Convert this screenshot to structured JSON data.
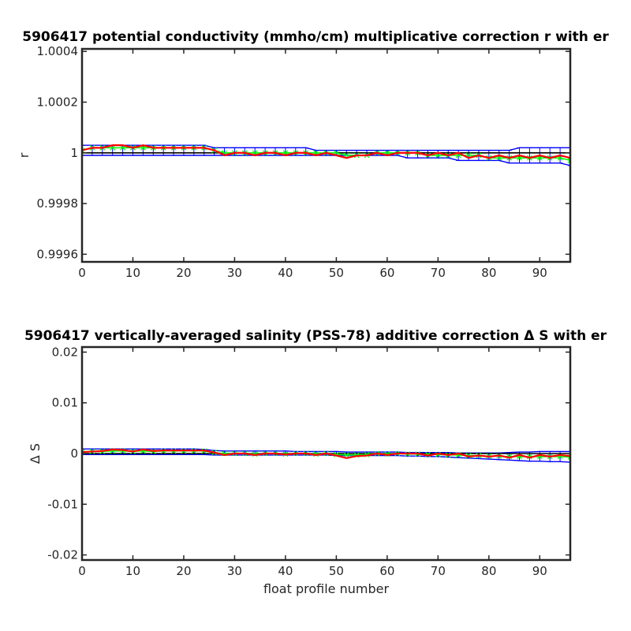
{
  "chart_data": [
    {
      "type": "line",
      "title": "5906417 potential conductivity (mmho/cm) multiplicative correction r with er",
      "xlabel": "",
      "ylabel": "r",
      "xlim": [
        0,
        96
      ],
      "ylim": [
        0.99957,
        1.00041
      ],
      "xticks": [
        0,
        10,
        20,
        30,
        40,
        50,
        60,
        70,
        80,
        90
      ],
      "yticks": [
        1.0004,
        1.0002,
        1,
        0.9998,
        0.9996
      ],
      "ytick_labels": [
        "1.0004",
        "1.0002",
        "1",
        "0.9998",
        "0.9996"
      ],
      "reference": 1,
      "x": [
        0,
        2,
        4,
        6,
        8,
        10,
        12,
        14,
        16,
        18,
        20,
        22,
        24,
        26,
        28,
        30,
        32,
        34,
        36,
        38,
        40,
        42,
        44,
        46,
        48,
        50,
        52,
        54,
        56,
        58,
        60,
        62,
        64,
        66,
        68,
        70,
        72,
        74,
        76,
        78,
        80,
        82,
        84,
        86,
        88,
        90,
        92,
        94,
        96
      ],
      "series": [
        {
          "color": "#ff0000",
          "values": [
            1.00001,
            1.00002,
            1.00002,
            1.00003,
            1.00003,
            1.00002,
            1.00003,
            1.00002,
            1.00002,
            1.00002,
            1.00002,
            1.00002,
            1.00002,
            1.00001,
            0.99999,
            1.0,
            1.0,
            0.99999,
            1.0,
            1.0,
            0.99999,
            1.0,
            1.0,
            0.99999,
            1.0,
            0.99999,
            0.99998,
            0.99999,
            0.99999,
            1.0,
            0.99999,
            1.0,
            1.0,
            1.0,
            0.99999,
            1.0,
            0.99999,
            1.0,
            0.99998,
            0.99999,
            0.99998,
            0.99999,
            0.99998,
            0.99999,
            0.99998,
            0.99999,
            0.99998,
            0.99999,
            0.99998
          ]
        },
        {
          "color": "#00ff00",
          "values": [
            1.00001,
            1.00002,
            1.00002,
            1.00002,
            1.00002,
            1.00002,
            1.00002,
            1.00002,
            1.00002,
            1.00002,
            1.00002,
            1.00002,
            1.00002,
            1.00001,
            1.0,
            1.0,
            1.0,
            1.0,
            1.0,
            1.0,
            1.0,
            1.0,
            1.0,
            1.0,
            1.0,
            1.0,
            0.99999,
            0.99999,
            0.99999,
            1.0,
            1.0,
            1.0,
            1.0,
            1.0,
            0.99999,
            0.99999,
            0.99999,
            0.99999,
            0.99999,
            0.99999,
            0.99998,
            0.99998,
            0.99998,
            0.99998,
            0.99998,
            0.99998,
            0.99998,
            0.99998,
            0.99997
          ]
        },
        {
          "color": "#0000ff",
          "band_upper": [
            1.00003,
            1.00003,
            1.00003,
            1.00003,
            1.00003,
            1.00003,
            1.00003,
            1.00003,
            1.00003,
            1.00003,
            1.00003,
            1.00003,
            1.00003,
            1.00002,
            1.00002,
            1.00002,
            1.00002,
            1.00002,
            1.00002,
            1.00002,
            1.00002,
            1.00002,
            1.00002,
            1.00001,
            1.00001,
            1.00001,
            1.00001,
            1.00001,
            1.00001,
            1.00001,
            1.00001,
            1.00001,
            1.00001,
            1.00001,
            1.00001,
            1.00001,
            1.00001,
            1.00001,
            1.00001,
            1.00001,
            1.00001,
            1.00001,
            1.00001,
            1.00002,
            1.00002,
            1.00002,
            1.00002,
            1.00002,
            1.00002
          ],
          "band_lower": [
            0.99999,
            0.99999,
            0.99999,
            0.99999,
            0.99999,
            0.99999,
            0.99999,
            0.99999,
            0.99999,
            0.99999,
            0.99999,
            0.99999,
            0.99999,
            0.99999,
            0.99999,
            0.99999,
            0.99999,
            0.99999,
            0.99999,
            0.99999,
            0.99999,
            0.99999,
            0.99999,
            0.99999,
            0.99999,
            0.99999,
            0.99999,
            0.99999,
            0.99999,
            0.99999,
            0.99999,
            0.99999,
            0.99998,
            0.99998,
            0.99998,
            0.99998,
            0.99998,
            0.99997,
            0.99997,
            0.99997,
            0.99997,
            0.99997,
            0.99996,
            0.99996,
            0.99996,
            0.99996,
            0.99996,
            0.99996,
            0.99995
          ]
        }
      ]
    },
    {
      "type": "line",
      "title": "5906417 vertically-averaged salinity (PSS-78) additive correction Δ S with er",
      "xlabel": "float profile number",
      "ylabel": "Δ S",
      "xlim": [
        0,
        96
      ],
      "ylim": [
        -0.021,
        0.021
      ],
      "xticks": [
        0,
        10,
        20,
        30,
        40,
        50,
        60,
        70,
        80,
        90
      ],
      "yticks": [
        0.02,
        0.01,
        0,
        -0.01,
        -0.02
      ],
      "ytick_labels": [
        "0.02",
        "0.01",
        "0",
        "-0.01",
        "-0.02"
      ],
      "reference": 0,
      "x": [
        0,
        2,
        4,
        6,
        8,
        10,
        12,
        14,
        16,
        18,
        20,
        22,
        24,
        26,
        28,
        30,
        32,
        34,
        36,
        38,
        40,
        42,
        44,
        46,
        48,
        50,
        52,
        54,
        56,
        58,
        60,
        62,
        64,
        66,
        68,
        70,
        72,
        74,
        76,
        78,
        80,
        82,
        84,
        86,
        88,
        90,
        92,
        94,
        96
      ],
      "series": [
        {
          "color": "#ff0000",
          "values": [
            0.0003,
            0.0004,
            0.0005,
            0.0008,
            0.0007,
            0.0004,
            0.0008,
            0.0005,
            0.0006,
            0.0006,
            0.0006,
            0.0006,
            0.0006,
            0.0002,
            -0.0003,
            0.0,
            0.0,
            -0.0003,
            0.0,
            0.0,
            -0.0002,
            0.0,
            0.0,
            -0.0003,
            0.0,
            -0.0004,
            -0.0009,
            -0.0005,
            -0.0004,
            0.0,
            -0.0003,
            0.0,
            0.0,
            0.0,
            -0.0004,
            0.0,
            -0.0003,
            0.0,
            -0.0006,
            -0.0004,
            -0.0006,
            -0.0004,
            -0.0008,
            -0.0003,
            -0.0008,
            -0.0003,
            -0.0006,
            -0.0003,
            -0.0005
          ]
        },
        {
          "color": "#00ff00",
          "values": [
            0.0003,
            0.0004,
            0.0004,
            0.0005,
            0.0005,
            0.0004,
            0.0005,
            0.0004,
            0.0005,
            0.0005,
            0.0005,
            0.0005,
            0.0005,
            0.0002,
            0.0,
            0.0,
            0.0,
            -0.0001,
            0.0,
            0.0,
            -0.0001,
            0.0,
            0.0,
            -0.0001,
            0.0,
            -0.0002,
            -0.0003,
            -0.0003,
            -0.0002,
            0.0,
            -0.0001,
            0.0,
            -0.0001,
            -0.0001,
            -0.0002,
            -0.0002,
            -0.0003,
            -0.0003,
            -0.0004,
            -0.0004,
            -0.0005,
            -0.0005,
            -0.0006,
            -0.0006,
            -0.0006,
            -0.0006,
            -0.0006,
            -0.0006,
            -0.0007
          ]
        },
        {
          "color": "#0000ff",
          "band_upper": [
            0.0009,
            0.0009,
            0.0009,
            0.0009,
            0.0009,
            0.0009,
            0.0009,
            0.0009,
            0.0009,
            0.0009,
            0.0009,
            0.0009,
            0.0008,
            0.0006,
            0.0005,
            0.0005,
            0.0005,
            0.0005,
            0.0005,
            0.0005,
            0.0005,
            0.0004,
            0.0004,
            0.0004,
            0.0004,
            0.0004,
            0.0003,
            0.0003,
            0.0003,
            0.0003,
            0.0003,
            0.0003,
            0.0002,
            0.0002,
            0.0002,
            0.0002,
            0.0002,
            0.0001,
            0.0001,
            0.0001,
            0.0001,
            0.0001,
            0.0002,
            0.0003,
            0.0003,
            0.0004,
            0.0004,
            0.0004,
            0.0004
          ],
          "band_lower": [
            -0.0002,
            -0.0002,
            -0.0002,
            -0.0002,
            -0.0002,
            -0.0002,
            -0.0002,
            -0.0002,
            -0.0002,
            -0.0002,
            -0.0002,
            -0.0002,
            -0.0002,
            -0.0003,
            -0.0003,
            -0.0003,
            -0.0003,
            -0.0003,
            -0.0003,
            -0.0003,
            -0.0003,
            -0.0003,
            -0.0003,
            -0.0003,
            -0.0003,
            -0.0004,
            -0.0004,
            -0.0004,
            -0.0004,
            -0.0004,
            -0.0004,
            -0.0004,
            -0.0005,
            -0.0005,
            -0.0006,
            -0.0006,
            -0.0007,
            -0.0008,
            -0.0009,
            -0.001,
            -0.0011,
            -0.0012,
            -0.0013,
            -0.0014,
            -0.0015,
            -0.0015,
            -0.0016,
            -0.0016,
            -0.0017
          ]
        }
      ]
    }
  ]
}
